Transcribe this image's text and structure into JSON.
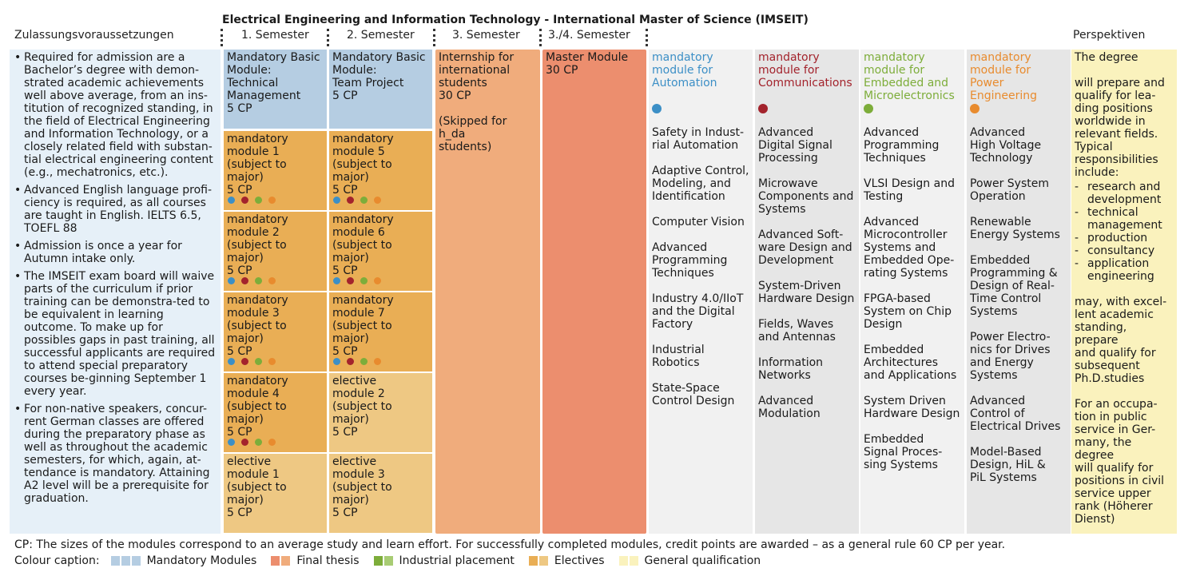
{
  "title": "Electrical Engineering and Information Technology - International Master of Science (IMSEIT)",
  "headers": {
    "admission": "Zulassungsvoraussetzungen",
    "sem1": "1. Semester",
    "sem2": "2. Semester",
    "sem3": "3. Semester",
    "sem34": "3./4. Semester",
    "perspectives": "Perspektiven"
  },
  "admission_items": [
    "Required for admission are a Bachelor’s degree with demon-strated academic achievements well above average, from an ins-titution of recognized standing, in the field of Electrical Engineering and Information Technology, or a closely related field with substan-tial electrical engineering content (e.g., mechatronics, etc.).",
    "Advanced English language profi-ciency is required, as all courses are taught in English. IELTS 6.5, TOEFL 88",
    "Admission is once a year for Autumn intake only.",
    "The IMSEIT exam board will waive parts of the curriculum if prior training can be demonstra-ted to be equivalent in learning outcome. To make up for possibles gaps in past training, all successful applicants are required to attend special preparatory courses be-ginning September 1 every year.",
    "For non-native speakers, concur-rent German classes are offered during the preparatory phase as well as throughout the academic semesters, for which, again, at-tendance is mandatory.  Attaining A2 level will be a prerequisite for graduation."
  ],
  "sem1": {
    "basic": [
      "Mandatory Basic",
      "Module:",
      "Technical",
      "Management",
      "5 CP"
    ],
    "modules": [
      {
        "lines": [
          "mandatory",
          "module 1",
          "(subject to major)",
          "5 CP"
        ],
        "dots": true
      },
      {
        "lines": [
          "mandatory",
          "module 2",
          "(subject to major)",
          "5 CP"
        ],
        "dots": true
      },
      {
        "lines": [
          "mandatory",
          "module 3",
          "(subject to major)",
          "5 CP"
        ],
        "dots": true
      },
      {
        "lines": [
          "mandatory",
          "module 4",
          "(subject to major)",
          "5 CP"
        ],
        "dots": true
      },
      {
        "lines": [
          "elective",
          "module 1",
          "(subject to major)",
          "5 CP"
        ],
        "dots": false
      }
    ]
  },
  "sem2": {
    "basic": [
      "Mandatory Basic",
      "Module:",
      "Team Project",
      "5 CP"
    ],
    "modules": [
      {
        "lines": [
          "mandatory",
          "module 5",
          "(subject to major)",
          "5 CP"
        ],
        "dots": true
      },
      {
        "lines": [
          "mandatory",
          "module 6",
          "(subject to major)",
          "5 CP"
        ],
        "dots": true
      },
      {
        "lines": [
          "mandatory",
          "module 7",
          "(subject to major)",
          "5 CP"
        ],
        "dots": true
      },
      {
        "lines": [
          "elective",
          "module 2",
          "(subject to major)",
          "5 CP"
        ],
        "dots": false
      },
      {
        "lines": [
          "elective",
          "module 3",
          "(subject to major)",
          "5 CP"
        ],
        "dots": false
      }
    ]
  },
  "internship": [
    "Internship for",
    "international",
    "students",
    "30 CP",
    "",
    "(Skipped for h_da",
    "students)"
  ],
  "master": [
    "Master Module",
    "30 CP"
  ],
  "majors": [
    {
      "head": [
        "mandatory",
        "module for",
        "Automation"
      ],
      "color": "#3c8fc6",
      "items": [
        [
          "Safety in Indust-",
          "rial Automation"
        ],
        [
          "Adaptive Control,",
          "Modeling, and",
          "Identification"
        ],
        [
          "Computer Vision"
        ],
        [
          "Advanced",
          "Programming",
          "Techniques"
        ],
        [
          "Industry 4.0/IIoT",
          "and the Digital",
          "Factory"
        ],
        [
          "Industrial",
          "Robotics"
        ],
        [
          "State-Space",
          "Control Design"
        ]
      ]
    },
    {
      "head": [
        "mandatory",
        "module for",
        "Communications"
      ],
      "color": "#a3232c",
      "items": [
        [
          "Advanced",
          "Digital Signal",
          "Processing"
        ],
        [
          "Microwave",
          "Components and",
          "Systems"
        ],
        [
          "Advanced Soft-",
          "ware Design and",
          "Development"
        ],
        [
          "System-Driven",
          "Hardware Design"
        ],
        [
          "Fields, Waves",
          "and Antennas"
        ],
        [
          "Information",
          "Networks"
        ],
        [
          "Advanced",
          "Modulation"
        ]
      ]
    },
    {
      "head": [
        "mandatory",
        "module for",
        "Embedded and",
        "Microelectronics"
      ],
      "color": "#7dad3a",
      "items": [
        [
          "Advanced",
          "Programming",
          "Techniques"
        ],
        [
          "VLSI Design and",
          "Testing"
        ],
        [
          "Advanced",
          "Microcontroller",
          "Systems and",
          "Embedded Ope-",
          "rating Systems"
        ],
        [
          "FPGA-based",
          "System on Chip",
          "Design"
        ],
        [
          "Embedded",
          "Architectures",
          "and Applications"
        ],
        [
          "System Driven",
          "Hardware Design"
        ],
        [
          "Embedded",
          "Signal Proces-",
          "sing Systems"
        ]
      ]
    },
    {
      "head": [
        "mandatory",
        "module for",
        "Power",
        "Engineering"
      ],
      "color": "#e88b2e",
      "items": [
        [
          "Advanced",
          "High Voltage",
          "Technology"
        ],
        [
          "Power System",
          "Operation"
        ],
        [
          "Renewable",
          "Energy Systems"
        ],
        [
          "Embedded",
          "Programming &",
          "Design of Real-",
          "Time Control",
          "Systems"
        ],
        [
          "Power Electro-",
          "nics for Drives",
          "and Energy",
          "Systems"
        ],
        [
          "Advanced",
          "Control of",
          "Electrical Drives"
        ],
        [
          "Model-Based",
          "Design, HiL &",
          "PiL Systems"
        ]
      ]
    }
  ],
  "perspectives": {
    "intro1": "The degree",
    "intro2": [
      "will prepare and",
      "qualify for lea-",
      "ding positions",
      "worldwide in",
      "relevant fields.",
      "Typical",
      "responsibilities",
      "include:"
    ],
    "list": [
      [
        "research and",
        "development"
      ],
      [
        "technical",
        "management"
      ],
      [
        "production"
      ],
      [
        "consultancy"
      ],
      [
        "application",
        "engineering"
      ]
    ],
    "phd": [
      "may, with excel-",
      "lent academic",
      "standing, prepare",
      "and qualify for",
      "subsequent",
      "Ph.D.studies"
    ],
    "public": [
      "For an occupa-",
      "tion in public",
      "service in Ger-",
      "many, the degree",
      "will qualify for",
      "positions in civil",
      "service upper",
      "rank (Höherer",
      "Dienst)"
    ]
  },
  "footnote": "CP: The sizes of the modules correspond to an average study and learn effort. For successfully completed modules, credit points are awarded – as a general rule 60 CP per year.",
  "legend": {
    "caption": "Colour caption:",
    "items": [
      {
        "label": "Mandatory Modules",
        "colors": [
          "#b5cde2",
          "#b5cde2",
          "#b5cde2"
        ]
      },
      {
        "label": "Final thesis",
        "colors": [
          "#ec8e6e",
          "#f0ac7c"
        ]
      },
      {
        "label": "Industrial placement",
        "colors": [
          "#7dad3a",
          "#a8cc74"
        ]
      },
      {
        "label": "Electives",
        "colors": [
          "#e9ae55",
          "#eec883"
        ]
      },
      {
        "label": "General qualification",
        "colors": [
          "#faf2bd",
          "#faf2bd"
        ]
      }
    ]
  },
  "module_dot_colors": [
    "#3c8fc6",
    "#a3232c",
    "#7dad3a",
    "#e88b2e"
  ]
}
